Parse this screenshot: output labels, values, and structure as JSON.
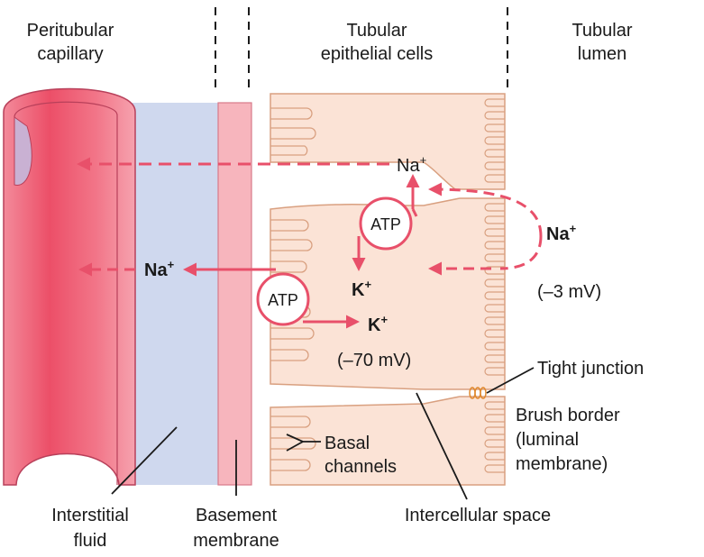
{
  "labels": {
    "peritubular_1": "Peritubular",
    "peritubular_2": "capillary",
    "tubular_cells_1": "Tubular",
    "tubular_cells_2": "epithelial cells",
    "lumen_1": "Tubular",
    "lumen_2": "lumen",
    "interstitial_1": "Interstitial",
    "interstitial_2": "fluid",
    "basement_1": "Basement",
    "basement_2": "membrane",
    "basal_1": "Basal",
    "basal_2": "channels",
    "intercellular": "Intercellular space",
    "tight_junction": "Tight junction",
    "brush_1": "Brush border",
    "brush_2": "(luminal",
    "brush_3": "membrane)"
  },
  "ions": {
    "na_top": "Na",
    "na_top_sup": "+",
    "na_lumen": "Na",
    "na_lumen_sup": "+",
    "na_interstitial": "Na",
    "na_interstitial_sup": "+",
    "k_cell": "K",
    "k_cell_sup": "+",
    "k_lower": "K",
    "k_lower_sup": "+"
  },
  "pumps": {
    "upper": "ATP",
    "lower": "ATP"
  },
  "potentials": {
    "cell": "(–70 mV)",
    "lumen": "(–3 mV)"
  },
  "colors": {
    "arrow": "#e8506a",
    "cell_fill": "#fbe3d6",
    "cell_stroke": "#d9a080",
    "capillary": "#f0657c",
    "interstitial": "#cfd8ee",
    "basement": "#f7b5bd"
  }
}
